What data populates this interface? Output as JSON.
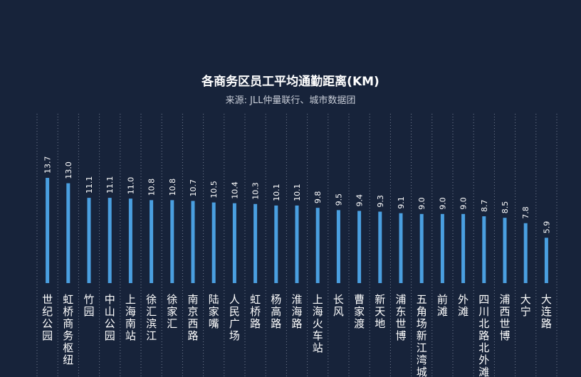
{
  "chart_data": {
    "type": "bar",
    "title": "各商务区员工平均通勤距离(KM)",
    "subtitle": "来源: JLL仲量联行、城市数据团",
    "categories": [
      "世纪公园",
      "虹桥商务枢纽",
      "竹园",
      "中山公园",
      "上海南站",
      "徐汇滨江",
      "徐家汇",
      "南京西路",
      "陆家嘴",
      "人民广场",
      "虹桥路",
      "杨高路",
      "淮海路",
      "上海火车站",
      "长风",
      "曹家渡",
      "新天地",
      "浦东世博",
      "五角场新江湾城",
      "前滩",
      "外滩",
      "四川北路北外滩",
      "浦西世博",
      "大宁",
      "大连路"
    ],
    "values": [
      13.7,
      13.0,
      11.1,
      11.1,
      11.0,
      10.8,
      10.8,
      10.7,
      10.5,
      10.4,
      10.3,
      10.1,
      10.1,
      9.8,
      9.5,
      9.4,
      9.3,
      9.1,
      9.0,
      9.0,
      9.0,
      8.7,
      8.5,
      7.8,
      5.9
    ],
    "value_labels": [
      "13.7",
      "13.0",
      "11.1",
      "11.1",
      "11.0",
      "10.8",
      "10.8",
      "10.7",
      "10.5",
      "10.4",
      "10.3",
      "10.1",
      "10.1",
      "9.8",
      "9.5",
      "9.4",
      "9.3",
      "9.1",
      "9.0",
      "9.0",
      "9.0",
      "8.7",
      "8.5",
      "7.8",
      "5.9"
    ],
    "orientation": "vertical",
    "ylim": [
      0,
      14
    ],
    "grid": "dotted vertical separators",
    "legend": "none",
    "colors": {
      "background": "#17233a",
      "bar": "#4a9fe0",
      "text": "#ffffff",
      "subtext": "#c9ced8",
      "separator": "#8a95a8"
    }
  }
}
